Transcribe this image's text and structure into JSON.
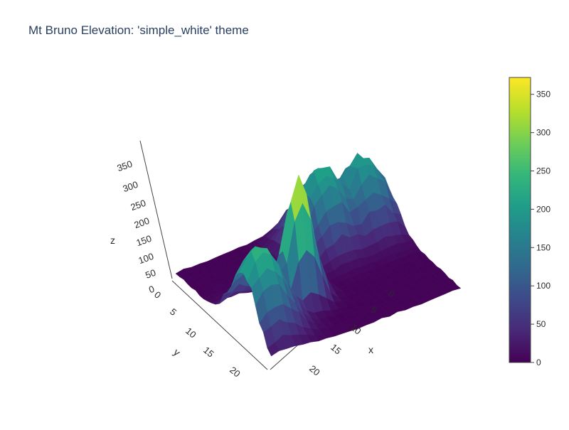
{
  "chart_data": {
    "type": "surface",
    "title": "Mt Bruno Elevation: 'simple_white' theme",
    "xlabel": "x",
    "ylabel": "y",
    "zlabel": "z",
    "x_ticks": [
      "0",
      "5",
      "10",
      "15",
      "20"
    ],
    "y_ticks": [
      "0",
      "5",
      "10",
      "15",
      "20"
    ],
    "z_ticks": [
      "0",
      "50",
      "100",
      "150",
      "200",
      "250",
      "300",
      "350"
    ],
    "x_range": [
      0,
      24
    ],
    "y_range": [
      0,
      24
    ],
    "z_range": [
      0,
      380
    ],
    "colorbar": {
      "colorscale": "Viridis",
      "min": 0,
      "max": 372,
      "ticks": [
        "0",
        "50",
        "100",
        "150",
        "200",
        "250",
        "300",
        "350"
      ],
      "tick_values": [
        0,
        50,
        100,
        150,
        200,
        250,
        300,
        350
      ]
    },
    "peaks": [
      {
        "x": 8,
        "y": 15,
        "z": 372
      },
      {
        "x": 2,
        "y": 17,
        "z": 240
      },
      {
        "x": 16,
        "y": 5,
        "z": 215
      },
      {
        "x": 21,
        "y": 5,
        "z": 200
      }
    ],
    "colors": {
      "viridis": [
        "#440154",
        "#482878",
        "#3e4989",
        "#31688e",
        "#26828e",
        "#1f9e89",
        "#35b779",
        "#6ece58",
        "#b5de2b",
        "#fde725"
      ]
    }
  }
}
